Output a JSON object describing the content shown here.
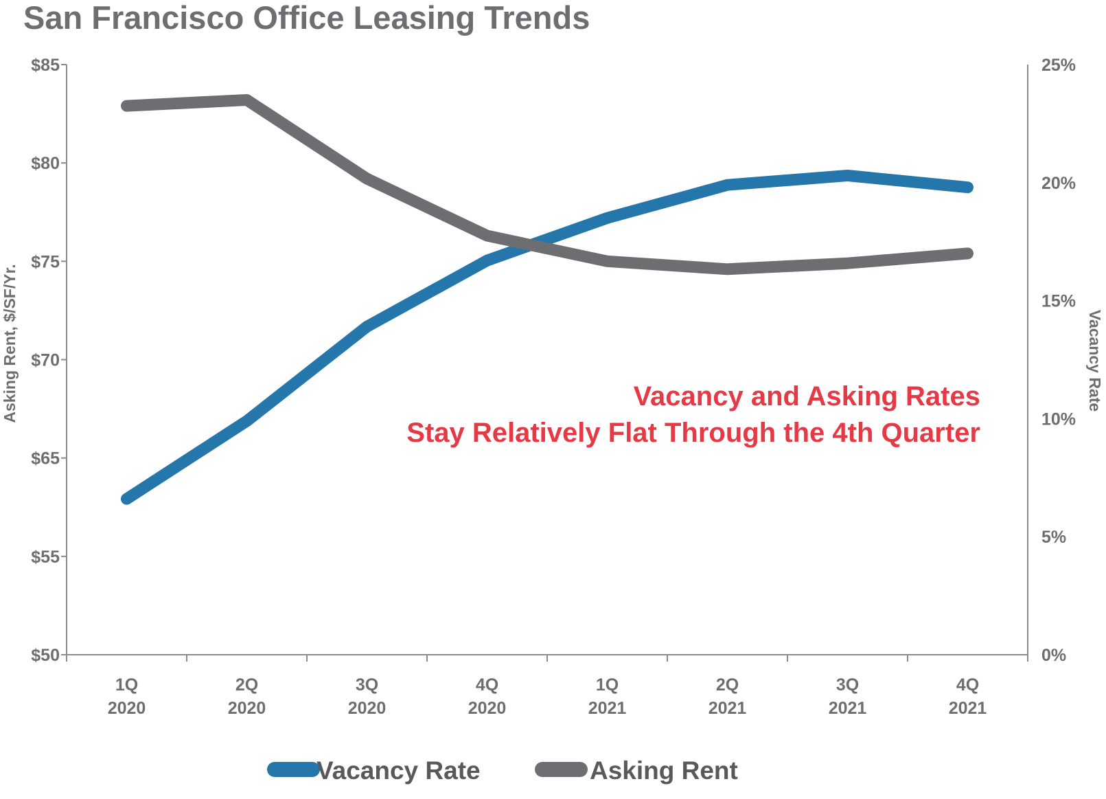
{
  "colors": {
    "vacancy": "#2577ab",
    "asking": "#6d6e71",
    "axis": "#8a8b8d",
    "annotation": "#e63946",
    "text": "#6d6e71"
  },
  "chart_data": {
    "type": "line",
    "title": "San Francisco Office Leasing Trends",
    "categories": [
      [
        "1Q",
        "2020"
      ],
      [
        "2Q",
        "2020"
      ],
      [
        "3Q",
        "2020"
      ],
      [
        "4Q",
        "2020"
      ],
      [
        "1Q",
        "2021"
      ],
      [
        "2Q",
        "2021"
      ],
      [
        "3Q",
        "2021"
      ],
      [
        "4Q",
        "2021"
      ]
    ],
    "y_left": {
      "label": "Asking Rent, $/SF/Yr.",
      "tick_labels": [
        "$50",
        "$55",
        "$65",
        "$70",
        "$75",
        "$80",
        "$85"
      ],
      "range": [
        50,
        85
      ]
    },
    "y_right": {
      "label": "Vacancy Rate",
      "ticks": [
        0,
        5,
        10,
        15,
        20,
        25
      ],
      "tick_labels": [
        "0%",
        "5%",
        "10%",
        "15%",
        "20%",
        "25%"
      ],
      "range": [
        0,
        25
      ]
    },
    "series": [
      {
        "name": "Vacancy Rate",
        "axis": "right",
        "color": "#2577ab",
        "values": [
          6.6,
          9.9,
          13.9,
          16.7,
          18.5,
          19.9,
          20.3,
          19.8
        ]
      },
      {
        "name": "Asking Rent",
        "axis": "left",
        "color": "#6d6e71",
        "values": [
          82.9,
          83.2,
          79.2,
          76.3,
          75.0,
          74.6,
          74.9,
          75.4
        ]
      }
    ],
    "annotation": [
      "Vacancy and Asking Rates",
      "Stay Relatively Flat Through the 4th Quarter"
    ],
    "legend": [
      "Vacancy Rate",
      "Asking Rent"
    ],
    "grid": false
  }
}
